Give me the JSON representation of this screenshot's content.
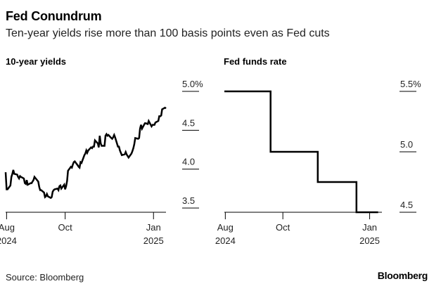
{
  "header": {
    "title": "Fed Conundrum",
    "subtitle": "Ten-year yields rise more than 100 basis points even as Fed cuts"
  },
  "footer": {
    "source": "Source: Bloomberg",
    "brand": "Bloomberg"
  },
  "colors": {
    "line": "#000000",
    "axis": "#000000",
    "text": "#222222"
  },
  "chart_data": [
    {
      "type": "line",
      "title": "10-year yields",
      "unit_suffix": "%",
      "ylim": [
        3.5,
        5.0
      ],
      "y_ticks": [
        {
          "value": 5.0,
          "label": "5.0%"
        },
        {
          "value": 4.5,
          "label": "4.5"
        },
        {
          "value": 4.0,
          "label": "4.0"
        },
        {
          "value": 3.5,
          "label": "3.5"
        }
      ],
      "xlim": [
        "2024-07-31",
        "2025-01-14"
      ],
      "x_ticks": [
        {
          "date": "2024-08-01",
          "label": "Aug",
          "label2": "2024"
        },
        {
          "date": "2024-10-01",
          "label": "Oct",
          "label2": ""
        },
        {
          "date": "2025-01-01",
          "label": "Jan",
          "label2": "2025"
        }
      ],
      "series": [
        {
          "x": [
            "2024-07-31",
            "2024-08-01",
            "2024-08-02",
            "2024-08-05",
            "2024-08-06",
            "2024-08-07",
            "2024-08-08",
            "2024-08-09",
            "2024-08-12",
            "2024-08-13",
            "2024-08-14",
            "2024-08-15",
            "2024-08-16",
            "2024-08-19",
            "2024-08-20",
            "2024-08-21",
            "2024-08-22",
            "2024-08-23",
            "2024-08-26",
            "2024-08-27",
            "2024-08-28",
            "2024-08-29",
            "2024-08-30",
            "2024-09-03",
            "2024-09-04",
            "2024-09-05",
            "2024-09-06",
            "2024-09-09",
            "2024-09-10",
            "2024-09-11",
            "2024-09-12",
            "2024-09-13",
            "2024-09-16",
            "2024-09-17",
            "2024-09-18",
            "2024-09-19",
            "2024-09-20",
            "2024-09-23",
            "2024-09-24",
            "2024-09-25",
            "2024-09-26",
            "2024-09-27",
            "2024-09-30",
            "2024-10-01",
            "2024-10-02",
            "2024-10-03",
            "2024-10-04",
            "2024-10-07",
            "2024-10-08",
            "2024-10-09",
            "2024-10-10",
            "2024-10-11",
            "2024-10-14",
            "2024-10-15",
            "2024-10-16",
            "2024-10-17",
            "2024-10-18",
            "2024-10-21",
            "2024-10-22",
            "2024-10-23",
            "2024-10-24",
            "2024-10-25",
            "2024-10-28",
            "2024-10-29",
            "2024-10-30",
            "2024-10-31",
            "2024-11-01",
            "2024-11-04",
            "2024-11-05",
            "2024-11-06",
            "2024-11-07",
            "2024-11-08",
            "2024-11-11",
            "2024-11-12",
            "2024-11-13",
            "2024-11-14",
            "2024-11-15",
            "2024-11-18",
            "2024-11-19",
            "2024-11-20",
            "2024-11-21",
            "2024-11-22",
            "2024-11-25",
            "2024-11-26",
            "2024-11-27",
            "2024-11-29",
            "2024-12-02",
            "2024-12-03",
            "2024-12-04",
            "2024-12-05",
            "2024-12-06",
            "2024-12-09",
            "2024-12-10",
            "2024-12-11",
            "2024-12-12",
            "2024-12-13",
            "2024-12-16",
            "2024-12-17",
            "2024-12-18",
            "2024-12-19",
            "2024-12-20",
            "2024-12-23",
            "2024-12-24",
            "2024-12-26",
            "2024-12-27",
            "2024-12-30",
            "2024-12-31",
            "2025-01-02",
            "2025-01-03",
            "2025-01-06",
            "2025-01-07",
            "2025-01-08",
            "2025-01-09",
            "2025-01-10",
            "2025-01-13",
            "2025-01-14"
          ],
          "y": [
            3.96,
            3.74,
            3.74,
            3.79,
            3.9,
            3.94,
            3.99,
            3.94,
            3.93,
            3.9,
            3.88,
            3.91,
            3.9,
            3.88,
            3.82,
            3.81,
            3.86,
            3.8,
            3.82,
            3.82,
            3.84,
            3.86,
            3.9,
            3.84,
            3.77,
            3.73,
            3.73,
            3.7,
            3.64,
            3.65,
            3.68,
            3.65,
            3.63,
            3.64,
            3.71,
            3.73,
            3.74,
            3.75,
            3.73,
            3.78,
            3.79,
            3.75,
            3.8,
            3.74,
            3.78,
            3.85,
            3.98,
            4.03,
            4.02,
            4.06,
            4.09,
            4.1,
            4.05,
            4.03,
            4.02,
            4.09,
            4.08,
            4.18,
            4.2,
            4.24,
            4.21,
            4.24,
            4.28,
            4.27,
            4.29,
            4.29,
            4.37,
            4.33,
            4.28,
            4.43,
            4.33,
            4.3,
            4.3,
            4.43,
            4.45,
            4.43,
            4.44,
            4.4,
            4.39,
            4.41,
            4.44,
            4.41,
            4.29,
            4.29,
            4.24,
            4.18,
            4.19,
            4.22,
            4.19,
            4.17,
            4.15,
            4.2,
            4.23,
            4.27,
            4.32,
            4.4,
            4.39,
            4.4,
            4.52,
            4.57,
            4.52,
            4.59,
            4.59,
            4.58,
            4.62,
            4.55,
            4.57,
            4.57,
            4.6,
            4.62,
            4.68,
            4.68,
            4.69,
            4.77,
            4.79,
            4.78
          ]
        }
      ]
    },
    {
      "type": "line",
      "title": "Fed funds rate",
      "unit_suffix": "%",
      "step": true,
      "ylim": [
        4.5,
        5.5
      ],
      "y_ticks": [
        {
          "value": 5.5,
          "label": "5.5%"
        },
        {
          "value": 5.0,
          "label": "5.0"
        },
        {
          "value": 4.5,
          "label": "4.5"
        }
      ],
      "xlim": [
        "2024-07-31",
        "2025-01-14"
      ],
      "x_ticks": [
        {
          "date": "2024-08-01",
          "label": "Aug",
          "label2": "2024"
        },
        {
          "date": "2024-10-01",
          "label": "Oct",
          "label2": ""
        },
        {
          "date": "2025-01-01",
          "label": "Jan",
          "label2": "2025"
        }
      ],
      "series": [
        {
          "x": [
            "2024-07-31",
            "2024-09-18",
            "2024-09-18",
            "2024-11-07",
            "2024-11-07",
            "2024-12-18",
            "2024-12-18",
            "2025-01-10"
          ],
          "y": [
            5.5,
            5.5,
            5.0,
            5.0,
            4.75,
            4.75,
            4.5,
            4.5
          ]
        }
      ]
    }
  ]
}
